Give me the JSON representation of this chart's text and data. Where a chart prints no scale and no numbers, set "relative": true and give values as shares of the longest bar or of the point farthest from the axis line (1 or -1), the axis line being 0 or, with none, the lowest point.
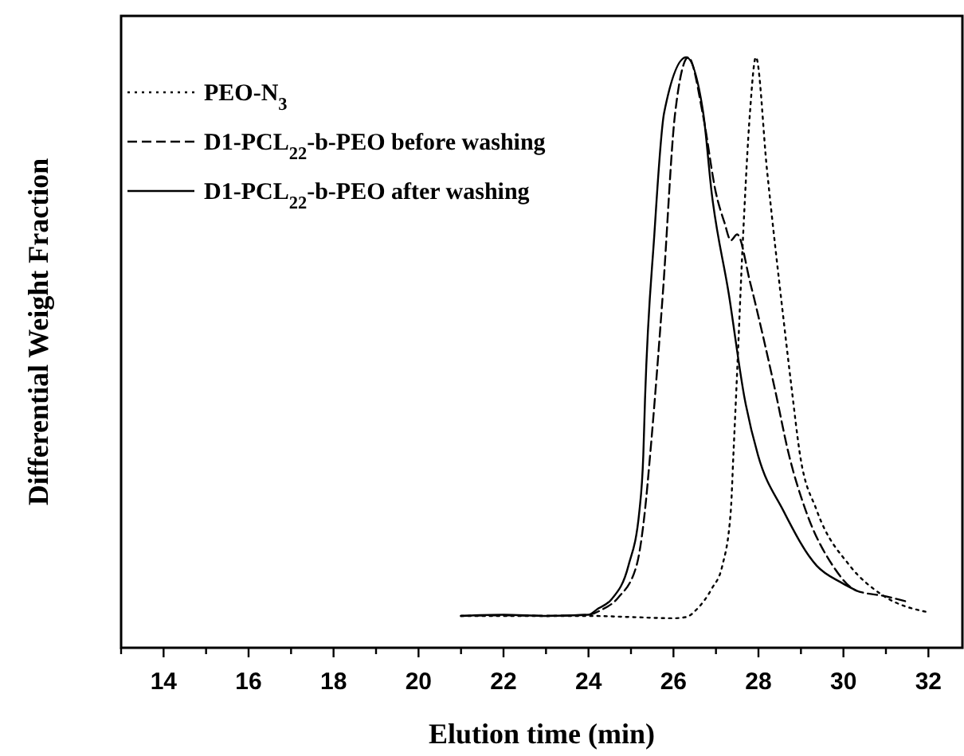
{
  "chart_data": {
    "type": "line",
    "relative": true,
    "xlabel": "Elution time (min)",
    "ylabel": "Differential Weight Fraction",
    "xlim": [
      13,
      32.8
    ],
    "xticks": [
      {
        "value": 13,
        "label": null
      },
      14,
      {
        "value": 15,
        "label": null
      },
      16,
      {
        "value": 17,
        "label": null
      },
      18,
      {
        "value": 19,
        "label": null
      },
      20,
      {
        "value": 21,
        "label": null
      },
      22,
      {
        "value": 23,
        "label": null
      },
      24,
      {
        "value": 25,
        "label": null
      },
      26,
      {
        "value": 27,
        "label": null
      },
      28,
      {
        "value": 29,
        "label": null
      },
      30,
      {
        "value": 31,
        "label": null
      },
      32
    ],
    "legend": "top left",
    "grid": false,
    "series": [
      {
        "name": "PEO-N$_{3}$",
        "color": "#000000",
        "line_style": "dotted",
        "x": [
          21,
          22,
          23,
          24,
          25,
          26,
          26.3,
          26.56,
          26.9,
          27.15,
          27.35,
          27.41,
          27.48,
          27.64,
          27.8,
          27.94,
          28.2,
          28.6,
          28.78,
          28.98,
          29.37,
          30.15,
          30.9,
          32
        ],
        "values": [
          0.054,
          0.054,
          0.054,
          0.054,
          0.052,
          0.05,
          0.052,
          0.066,
          0.1,
          0.139,
          0.233,
          0.326,
          0.437,
          0.7,
          0.906,
          1,
          0.81,
          0.55,
          0.44,
          0.326,
          0.233,
          0.139,
          0.09,
          0.06
        ]
      },
      {
        "name": "D1-PCL$_{22}$-b-PEO before washing",
        "color": "#000000",
        "line_style": "dashed",
        "x": [
          21,
          22,
          23,
          24,
          24.3,
          24.7,
          25.13,
          25.33,
          25.45,
          25.75,
          26.04,
          26.35,
          26.7,
          27,
          27.2,
          27.35,
          27.5,
          27.8,
          28.1,
          28.39,
          28.72,
          29.11,
          29.75,
          30.3,
          31,
          31.5
        ],
        "values": [
          0.054,
          0.055,
          0.054,
          0.056,
          0.064,
          0.085,
          0.139,
          0.233,
          0.326,
          0.6,
          0.906,
          1,
          0.9,
          0.77,
          0.72,
          0.69,
          0.7,
          0.62,
          0.53,
          0.437,
          0.326,
          0.233,
          0.139,
          0.097,
          0.087,
          0.078
        ]
      },
      {
        "name": "D1-PCL$_{22}$-b-PEO after washing",
        "color": "#000000",
        "line_style": "solid",
        "x": [
          21,
          22,
          23,
          24,
          24.22,
          24.54,
          24.94,
          25.2,
          25.29,
          25.33,
          25.55,
          25.78,
          26.3,
          26.7,
          26.9,
          27.3,
          27.68,
          27.99,
          28.58,
          29.37,
          29.96,
          30.3
        ],
        "values": [
          0.054,
          0.056,
          0.054,
          0.056,
          0.066,
          0.082,
          0.139,
          0.233,
          0.326,
          0.42,
          0.7,
          0.906,
          1,
          0.906,
          0.77,
          0.6,
          0.42,
          0.326,
          0.233,
          0.139,
          0.11,
          0.097
        ]
      }
    ]
  }
}
